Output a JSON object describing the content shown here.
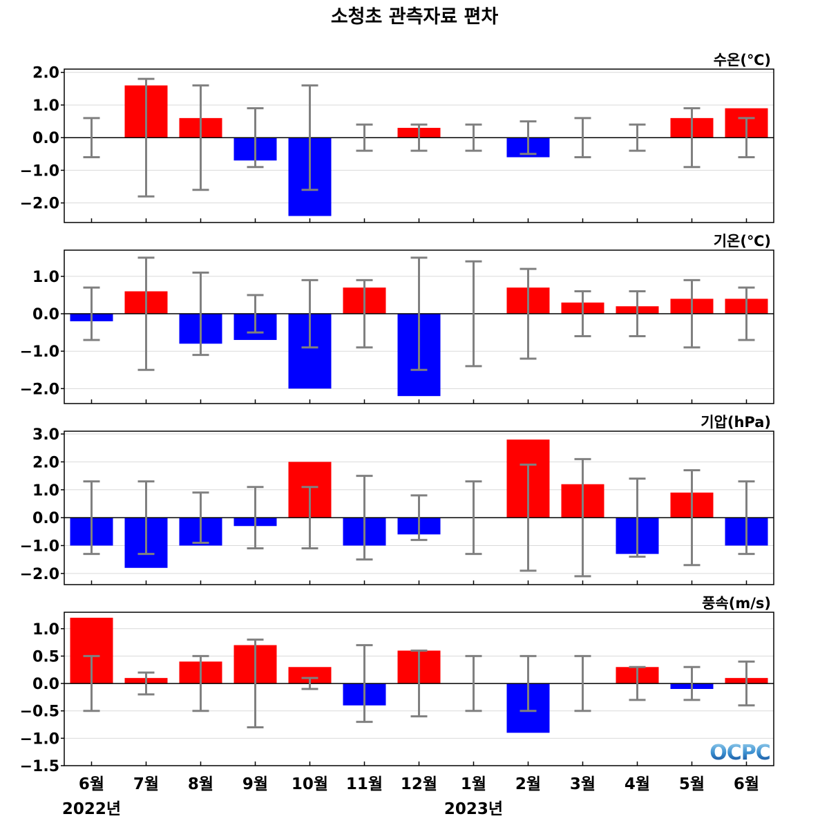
{
  "title": "소청초 관측자료 편차",
  "colors": {
    "positive": "#ff0000",
    "negative": "#0000ff",
    "errorbar": "#808080",
    "grid": "#d9d9d9"
  },
  "logo_text": "OCPC",
  "chart_data": [
    {
      "type": "bar",
      "panel_label": "수온(℃)",
      "categories": [
        "6월",
        "7월",
        "8월",
        "9월",
        "10월",
        "11월",
        "12월",
        "1월",
        "2월",
        "3월",
        "4월",
        "5월",
        "6월"
      ],
      "years": [
        {
          "label": "2022년",
          "index": 0
        },
        {
          "label": "2023년",
          "index": 7
        }
      ],
      "values": [
        0.0,
        1.6,
        0.6,
        -0.7,
        -2.4,
        0.0,
        0.3,
        0.0,
        -0.6,
        0.0,
        0.0,
        0.6,
        0.9
      ],
      "error": [
        0.6,
        1.8,
        1.6,
        0.9,
        1.6,
        0.4,
        0.4,
        0.4,
        0.5,
        0.6,
        0.4,
        0.9,
        0.6
      ],
      "ylim": [
        -2.6,
        2.1
      ],
      "yticks": [
        2.0,
        1.0,
        0.0,
        -1.0,
        -2.0
      ],
      "ytick_labels": [
        "2.0",
        "1.0",
        "0.0",
        "−1.0",
        "−2.0"
      ],
      "grid": true
    },
    {
      "type": "bar",
      "panel_label": "기온(℃)",
      "categories": [
        "6월",
        "7월",
        "8월",
        "9월",
        "10월",
        "11월",
        "12월",
        "1월",
        "2월",
        "3월",
        "4월",
        "5월",
        "6월"
      ],
      "values": [
        -0.2,
        0.6,
        -0.8,
        -0.7,
        -2.0,
        0.7,
        -2.2,
        0.0,
        0.7,
        0.3,
        0.2,
        0.4,
        0.4
      ],
      "error": [
        0.7,
        1.5,
        1.1,
        0.5,
        0.9,
        0.9,
        1.5,
        1.4,
        1.2,
        0.6,
        0.6,
        0.9,
        0.7
      ],
      "ylim": [
        -2.4,
        1.7
      ],
      "yticks": [
        1.0,
        0.0,
        -1.0,
        -2.0
      ],
      "ytick_labels": [
        "1.0",
        "0.0",
        "−1.0",
        "−2.0"
      ],
      "grid": true
    },
    {
      "type": "bar",
      "panel_label": "기압(hPa)",
      "categories": [
        "6월",
        "7월",
        "8월",
        "9월",
        "10월",
        "11월",
        "12월",
        "1월",
        "2월",
        "3월",
        "4월",
        "5월",
        "6월"
      ],
      "values": [
        -1.0,
        -1.8,
        -1.0,
        -0.3,
        2.0,
        -1.0,
        -0.6,
        0.0,
        2.8,
        1.2,
        -1.3,
        0.9,
        -1.0
      ],
      "error": [
        1.3,
        1.3,
        0.9,
        1.1,
        1.1,
        1.5,
        0.8,
        1.3,
        1.9,
        2.1,
        1.4,
        1.7,
        1.3
      ],
      "ylim": [
        -2.4,
        3.1
      ],
      "yticks": [
        3.0,
        2.0,
        1.0,
        0.0,
        -1.0,
        -2.0
      ],
      "ytick_labels": [
        "3.0",
        "2.0",
        "1.0",
        "0.0",
        "−1.0",
        "−2.0"
      ],
      "grid": true
    },
    {
      "type": "bar",
      "panel_label": "풍속(m/s)",
      "categories": [
        "6월",
        "7월",
        "8월",
        "9월",
        "10월",
        "11월",
        "12월",
        "1월",
        "2월",
        "3월",
        "4월",
        "5월",
        "6월"
      ],
      "values": [
        1.2,
        0.1,
        0.4,
        0.7,
        0.3,
        -0.4,
        0.6,
        0.0,
        -0.9,
        0.0,
        0.3,
        -0.1,
        0.1
      ],
      "error": [
        0.5,
        0.2,
        0.5,
        0.8,
        0.1,
        0.7,
        0.6,
        0.5,
        0.5,
        0.5,
        0.3,
        0.3,
        0.4
      ],
      "ylim": [
        -1.5,
        1.3
      ],
      "yticks": [
        1.0,
        0.5,
        0.0,
        -0.5,
        -1.0,
        -1.5
      ],
      "ytick_labels": [
        "1.0",
        "0.5",
        "0.0",
        "−0.5",
        "−1.0",
        "−1.5"
      ],
      "grid": true
    }
  ]
}
